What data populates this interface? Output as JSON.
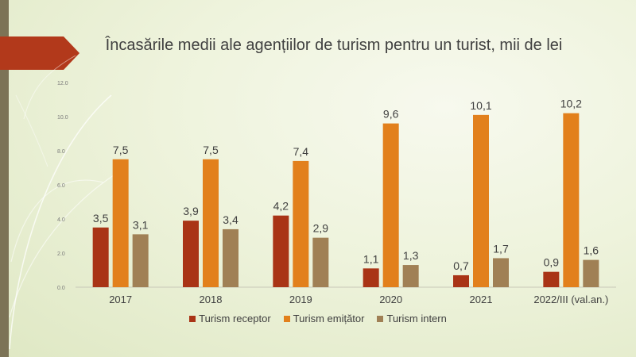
{
  "colors": {
    "receptor": "#a93416",
    "emitator": "#e2801c",
    "intern": "#a08055",
    "accent": "#b2391b",
    "bar": "#7c7356"
  },
  "chart_data": {
    "type": "bar",
    "title": "Încasările medii ale agențiilor de turism pentru un turist, mii de lei",
    "categories": [
      "2017",
      "2018",
      "2019",
      "2020",
      "2021",
      "2022/III (val.an.)"
    ],
    "ylim": [
      0,
      12
    ],
    "yticks": [
      "0.0",
      "2.0",
      "4.0",
      "6.0",
      "8.0",
      "10.0",
      "12.0"
    ],
    "series": [
      {
        "name": "Turism receptor",
        "values": [
          3.5,
          3.9,
          4.2,
          1.1,
          0.7,
          0.9
        ],
        "labels": [
          "3,5",
          "3,9",
          "4,2",
          "1,1",
          "0,7",
          "0,9"
        ]
      },
      {
        "name": "Turism emițător",
        "values": [
          7.5,
          7.5,
          7.4,
          9.6,
          10.1,
          10.2
        ],
        "labels": [
          "7,5",
          "7,5",
          "7,4",
          "9,6",
          "10,1",
          "10,2"
        ]
      },
      {
        "name": "Turism intern",
        "values": [
          3.1,
          3.4,
          2.9,
          1.3,
          1.7,
          1.6
        ],
        "labels": [
          "3,1",
          "3,4",
          "2,9",
          "1,3",
          "1,7",
          "1,6"
        ]
      }
    ],
    "legend": "bottom"
  }
}
